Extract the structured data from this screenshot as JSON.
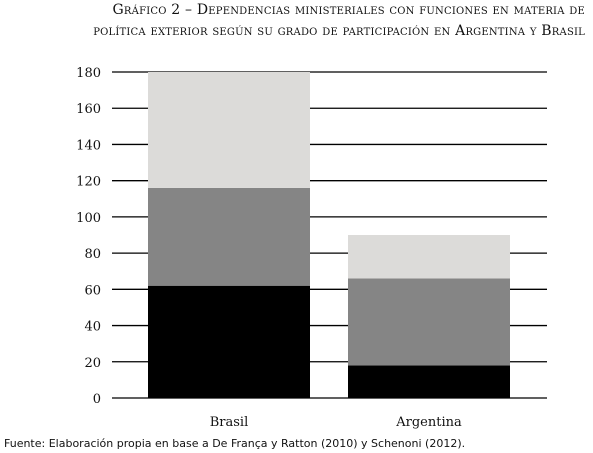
{
  "header": {
    "title_line1": "Gráfico 2 – Dependencias ministeriales con funciones en materia de",
    "title_line2": "política exterior según su grado de participación en Argentina y Brasil"
  },
  "footer": {
    "source": "Fuente: Elaboración propia en base a De França y Ratton (2010) y Schenoni (2012)."
  },
  "colors": {
    "series_bottom": "#000000",
    "series_middle": "#858585",
    "series_top": "#dcdbd9",
    "gridline": "#000000"
  },
  "chart_data": {
    "type": "bar",
    "stacked": true,
    "categories": [
      "Brasil",
      "Argentina"
    ],
    "series": [
      {
        "values": [
          62,
          18
        ]
      },
      {
        "values": [
          54,
          48
        ]
      },
      {
        "values": [
          64,
          24
        ]
      }
    ],
    "yticks": [
      0,
      20,
      40,
      60,
      80,
      100,
      120,
      140,
      160,
      180
    ],
    "ylim": [
      0,
      180
    ],
    "grid": true,
    "legend": "none"
  }
}
